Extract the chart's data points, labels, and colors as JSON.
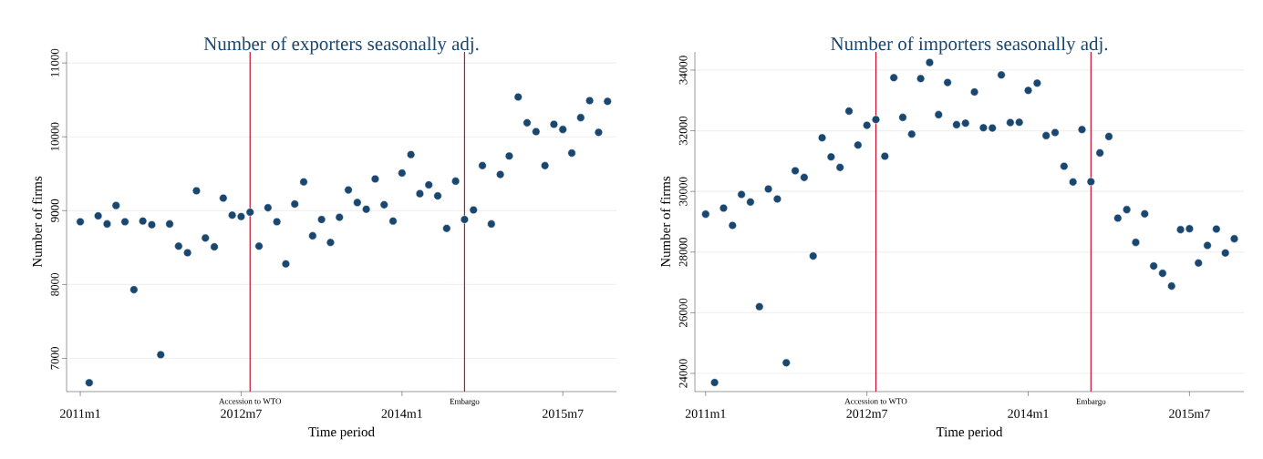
{
  "chart_data": [
    {
      "type": "scatter",
      "title": "Number of exporters seasonally adj.",
      "xlabel": "Time period",
      "ylabel": "Number of firms",
      "grid": "y",
      "x": [
        "2011-01",
        "2011-02",
        "2011-03",
        "2011-04",
        "2011-05",
        "2011-06",
        "2011-07",
        "2011-08",
        "2011-09",
        "2011-10",
        "2011-11",
        "2011-12",
        "2012-01",
        "2012-02",
        "2012-03",
        "2012-04",
        "2012-05",
        "2012-06",
        "2012-07",
        "2012-08",
        "2012-09",
        "2012-10",
        "2012-11",
        "2012-12",
        "2013-01",
        "2013-02",
        "2013-03",
        "2013-04",
        "2013-05",
        "2013-06",
        "2013-07",
        "2013-08",
        "2013-09",
        "2013-10",
        "2013-11",
        "2013-12",
        "2014-01",
        "2014-02",
        "2014-03",
        "2014-04",
        "2014-05",
        "2014-06",
        "2014-07",
        "2014-08",
        "2014-09",
        "2014-10",
        "2014-11",
        "2014-12",
        "2015-01",
        "2015-02",
        "2015-03",
        "2015-04",
        "2015-05",
        "2015-06",
        "2015-07",
        "2015-08",
        "2015-09",
        "2015-10",
        "2015-11",
        "2015-12"
      ],
      "series": [
        {
          "color": "#1a476f",
          "values": [
            8850,
            6670,
            8930,
            8820,
            9070,
            8850,
            7930,
            8860,
            8810,
            7050,
            8820,
            8520,
            8430,
            9270,
            8630,
            8510,
            9170,
            8940,
            8920,
            8980,
            8520,
            9040,
            8850,
            8280,
            9090,
            9390,
            8660,
            8880,
            8570,
            8910,
            9280,
            9110,
            9020,
            9430,
            9080,
            8860,
            9510,
            9760,
            9230,
            9350,
            9200,
            8760,
            9400,
            8880,
            9010,
            9610,
            8820,
            9490,
            9740,
            10540,
            10190,
            10070,
            9610,
            10170,
            10100,
            9780,
            10260,
            10490,
            10060,
            10480
          ]
        }
      ],
      "xlim": [
        "2010-11-15",
        "2016-01"
      ],
      "ylim": [
        6550,
        11150
      ],
      "xticks": [
        {
          "value": "2011-01",
          "label": "2011m1"
        },
        {
          "value": "2012-07",
          "label": "2012m7"
        },
        {
          "value": "2014-01",
          "label": "2014m1"
        },
        {
          "value": "2015-07",
          "label": "2015m7"
        }
      ],
      "yticks": [
        7000,
        8000,
        9000,
        10000,
        11000
      ],
      "ref_lines": [
        {
          "axis": "x",
          "value": "2012-08",
          "label": "Accession to WTO",
          "color": "#c8102e"
        },
        {
          "axis": "x",
          "value": "2014-08",
          "label": "Embargo",
          "color": "#c8102e"
        }
      ]
    },
    {
      "type": "scatter",
      "title": "Number of importers seasonally adj.",
      "xlabel": "Time period",
      "ylabel": "Number of firms",
      "grid": "y",
      "x": [
        "2011-01",
        "2011-02",
        "2011-03",
        "2011-04",
        "2011-05",
        "2011-06",
        "2011-07",
        "2011-08",
        "2011-09",
        "2011-10",
        "2011-11",
        "2011-12",
        "2012-01",
        "2012-02",
        "2012-03",
        "2012-04",
        "2012-05",
        "2012-06",
        "2012-07",
        "2012-08",
        "2012-09",
        "2012-10",
        "2012-11",
        "2012-12",
        "2013-01",
        "2013-02",
        "2013-03",
        "2013-04",
        "2013-05",
        "2013-06",
        "2013-07",
        "2013-08",
        "2013-09",
        "2013-10",
        "2013-11",
        "2013-12",
        "2014-01",
        "2014-02",
        "2014-03",
        "2014-04",
        "2014-05",
        "2014-06",
        "2014-07",
        "2014-08",
        "2014-09",
        "2014-10",
        "2014-11",
        "2014-12",
        "2015-01",
        "2015-02",
        "2015-03",
        "2015-04",
        "2015-05",
        "2015-06",
        "2015-07",
        "2015-08",
        "2015-09",
        "2015-10",
        "2015-11",
        "2015-12"
      ],
      "series": [
        {
          "color": "#1a476f",
          "values": [
            29250,
            23700,
            29450,
            28880,
            29900,
            29650,
            26200,
            30080,
            29750,
            24350,
            30680,
            30460,
            27870,
            31770,
            31140,
            30790,
            32650,
            31530,
            32180,
            32370,
            31160,
            33750,
            32440,
            31890,
            33720,
            34250,
            32530,
            33590,
            32200,
            32250,
            33280,
            32100,
            32090,
            33840,
            32270,
            32280,
            33330,
            33570,
            31840,
            31940,
            30830,
            30310,
            32040,
            30320,
            31270,
            31810,
            29120,
            29400,
            28320,
            29260,
            27540,
            27300,
            26880,
            28740,
            28770,
            27640,
            28220,
            28760,
            27970,
            28440
          ]
        }
      ],
      "xlim": [
        "2010-11-25",
        "2016-01-03"
      ],
      "ylim": [
        23400,
        34600
      ],
      "xticks": [
        {
          "value": "2011-01",
          "label": "2011m1"
        },
        {
          "value": "2012-07",
          "label": "2012m7"
        },
        {
          "value": "2014-01",
          "label": "2014m1"
        },
        {
          "value": "2015-07",
          "label": "2015m7"
        }
      ],
      "yticks": [
        24000,
        26000,
        28000,
        30000,
        32000,
        34000
      ],
      "ref_lines": [
        {
          "axis": "x",
          "value": "2012-08",
          "label": "Accession to WTO",
          "color": "#c8102e"
        },
        {
          "axis": "x",
          "value": "2014-08",
          "label": "Embargo",
          "color": "#c8102e"
        }
      ]
    }
  ]
}
